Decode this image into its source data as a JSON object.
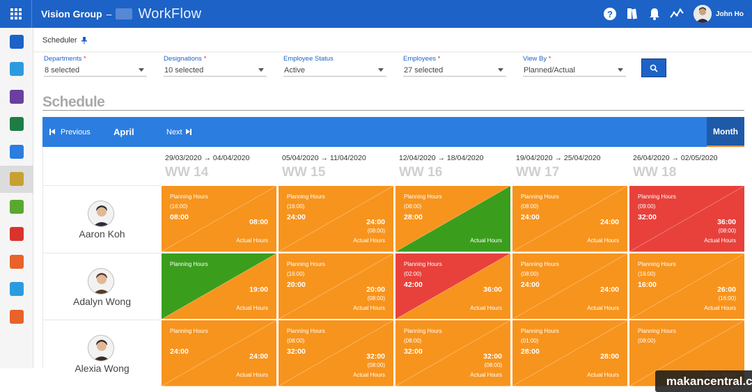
{
  "topbar": {
    "company": "Vision Group",
    "separator": "–",
    "product": "WorkFlow",
    "user_name": "John Ho"
  },
  "rail": {
    "items": [
      {
        "name": "dashboard-icon",
        "color": "#1d62c6"
      },
      {
        "name": "folder-icon",
        "color": "#2b9be0"
      },
      {
        "name": "teams-icon",
        "color": "#6b3fa0"
      },
      {
        "name": "sheet-icon",
        "color": "#1e7d45"
      },
      {
        "name": "form-icon",
        "color": "#2b7de0"
      },
      {
        "name": "scheduler-icon",
        "color": "#c8a032",
        "active": true
      },
      {
        "name": "timesheet-icon",
        "color": "#5aa830"
      },
      {
        "name": "forward-icon",
        "color": "#d9342b"
      },
      {
        "name": "cloud-c-icon",
        "color": "#e8622a"
      },
      {
        "name": "cloud-icon",
        "color": "#2b9be0"
      },
      {
        "name": "support-icon",
        "color": "#e8622a"
      }
    ]
  },
  "breadcrumb": {
    "label": "Scheduler"
  },
  "filters": [
    {
      "label": "Departments",
      "required": "*",
      "value": "8 selected"
    },
    {
      "label": "Designations",
      "required": "*",
      "value": "10 selected"
    },
    {
      "label": "Employee Status",
      "required": "",
      "value": "Active"
    },
    {
      "label": "Employees",
      "required": "*",
      "value": "27 selected"
    },
    {
      "label": "View By",
      "required": "*",
      "value": "Planned/Actual"
    }
  ],
  "schedule": {
    "title": "Schedule",
    "nav": {
      "previous": "Previous",
      "month": "April",
      "next": "Next",
      "view_button": "Month"
    },
    "weeks": [
      {
        "range": "29/03/2020 → 04/04/2020",
        "ww": "WW 14"
      },
      {
        "range": "05/04/2020 → 11/04/2020",
        "ww": "WW 15"
      },
      {
        "range": "12/04/2020 → 18/04/2020",
        "ww": "WW 16"
      },
      {
        "range": "19/04/2020 → 25/04/2020",
        "ww": "WW 17"
      },
      {
        "range": "26/04/2020 → 02/05/2020",
        "ww": "WW 18"
      }
    ],
    "labels": {
      "planning": "Planning Hours",
      "actual": "Actual Hours"
    },
    "colors": {
      "orange": "#f7941d",
      "green": "#3a9e1c",
      "red": "#e8413c"
    },
    "employees": [
      {
        "name": "Aaron Koh",
        "cells": [
          {
            "plan_paren": "(16:00)",
            "planned": "08:00",
            "actual": "08:00",
            "actual_paren": "",
            "top": "orange",
            "bottom": "orange"
          },
          {
            "plan_paren": "(16:00)",
            "planned": "24:00",
            "actual": "24:00",
            "actual_paren": "(08:00)",
            "top": "orange",
            "bottom": "orange"
          },
          {
            "plan_paren": "(08:00)",
            "planned": "28:00",
            "actual": "",
            "actual_paren": "",
            "top": "orange",
            "bottom": "green"
          },
          {
            "plan_paren": "(08:00)",
            "planned": "24:00",
            "actual": "24:00",
            "actual_paren": "",
            "top": "orange",
            "bottom": "orange"
          },
          {
            "plan_paren": "(09:00)",
            "planned": "32:00",
            "actual": "36:00",
            "actual_paren": "(08:00)",
            "top": "red",
            "bottom": "red"
          }
        ]
      },
      {
        "name": "Adalyn Wong",
        "cells": [
          {
            "plan_paren": "",
            "planned": "",
            "actual": "19:00",
            "actual_paren": "",
            "top": "green",
            "bottom": "orange"
          },
          {
            "plan_paren": "(16:00)",
            "planned": "20:00",
            "actual": "20:00",
            "actual_paren": "(08:00)",
            "top": "orange",
            "bottom": "orange"
          },
          {
            "plan_paren": "(02:00)",
            "planned": "42:00",
            "actual": "36:00",
            "actual_paren": "",
            "top": "red",
            "bottom": "orange"
          },
          {
            "plan_paren": "(08:00)",
            "planned": "24:00",
            "actual": "24:00",
            "actual_paren": "",
            "top": "orange",
            "bottom": "orange"
          },
          {
            "plan_paren": "(16:00)",
            "planned": "16:00",
            "actual": "26:00",
            "actual_paren": "(16:00)",
            "top": "orange",
            "bottom": "orange"
          }
        ]
      },
      {
        "name": "Alexia Wong",
        "cells": [
          {
            "plan_paren": "",
            "planned": "24:00",
            "actual": "24:00",
            "actual_paren": "",
            "top": "orange",
            "bottom": "orange"
          },
          {
            "plan_paren": "(08:00)",
            "planned": "32:00",
            "actual": "32:00",
            "actual_paren": "(08:00)",
            "top": "orange",
            "bottom": "orange"
          },
          {
            "plan_paren": "(08:00)",
            "planned": "32:00",
            "actual": "32:00",
            "actual_paren": "(08:00)",
            "top": "orange",
            "bottom": "orange"
          },
          {
            "plan_paren": "(01:00)",
            "planned": "28:00",
            "actual": "28:00",
            "actual_paren": "",
            "top": "orange",
            "bottom": "orange"
          },
          {
            "plan_paren": "(08:00)",
            "planned": "",
            "actual": "",
            "actual_paren": "",
            "top": "orange",
            "bottom": "orange"
          }
        ]
      }
    ]
  },
  "watermark": "makancentral.com"
}
